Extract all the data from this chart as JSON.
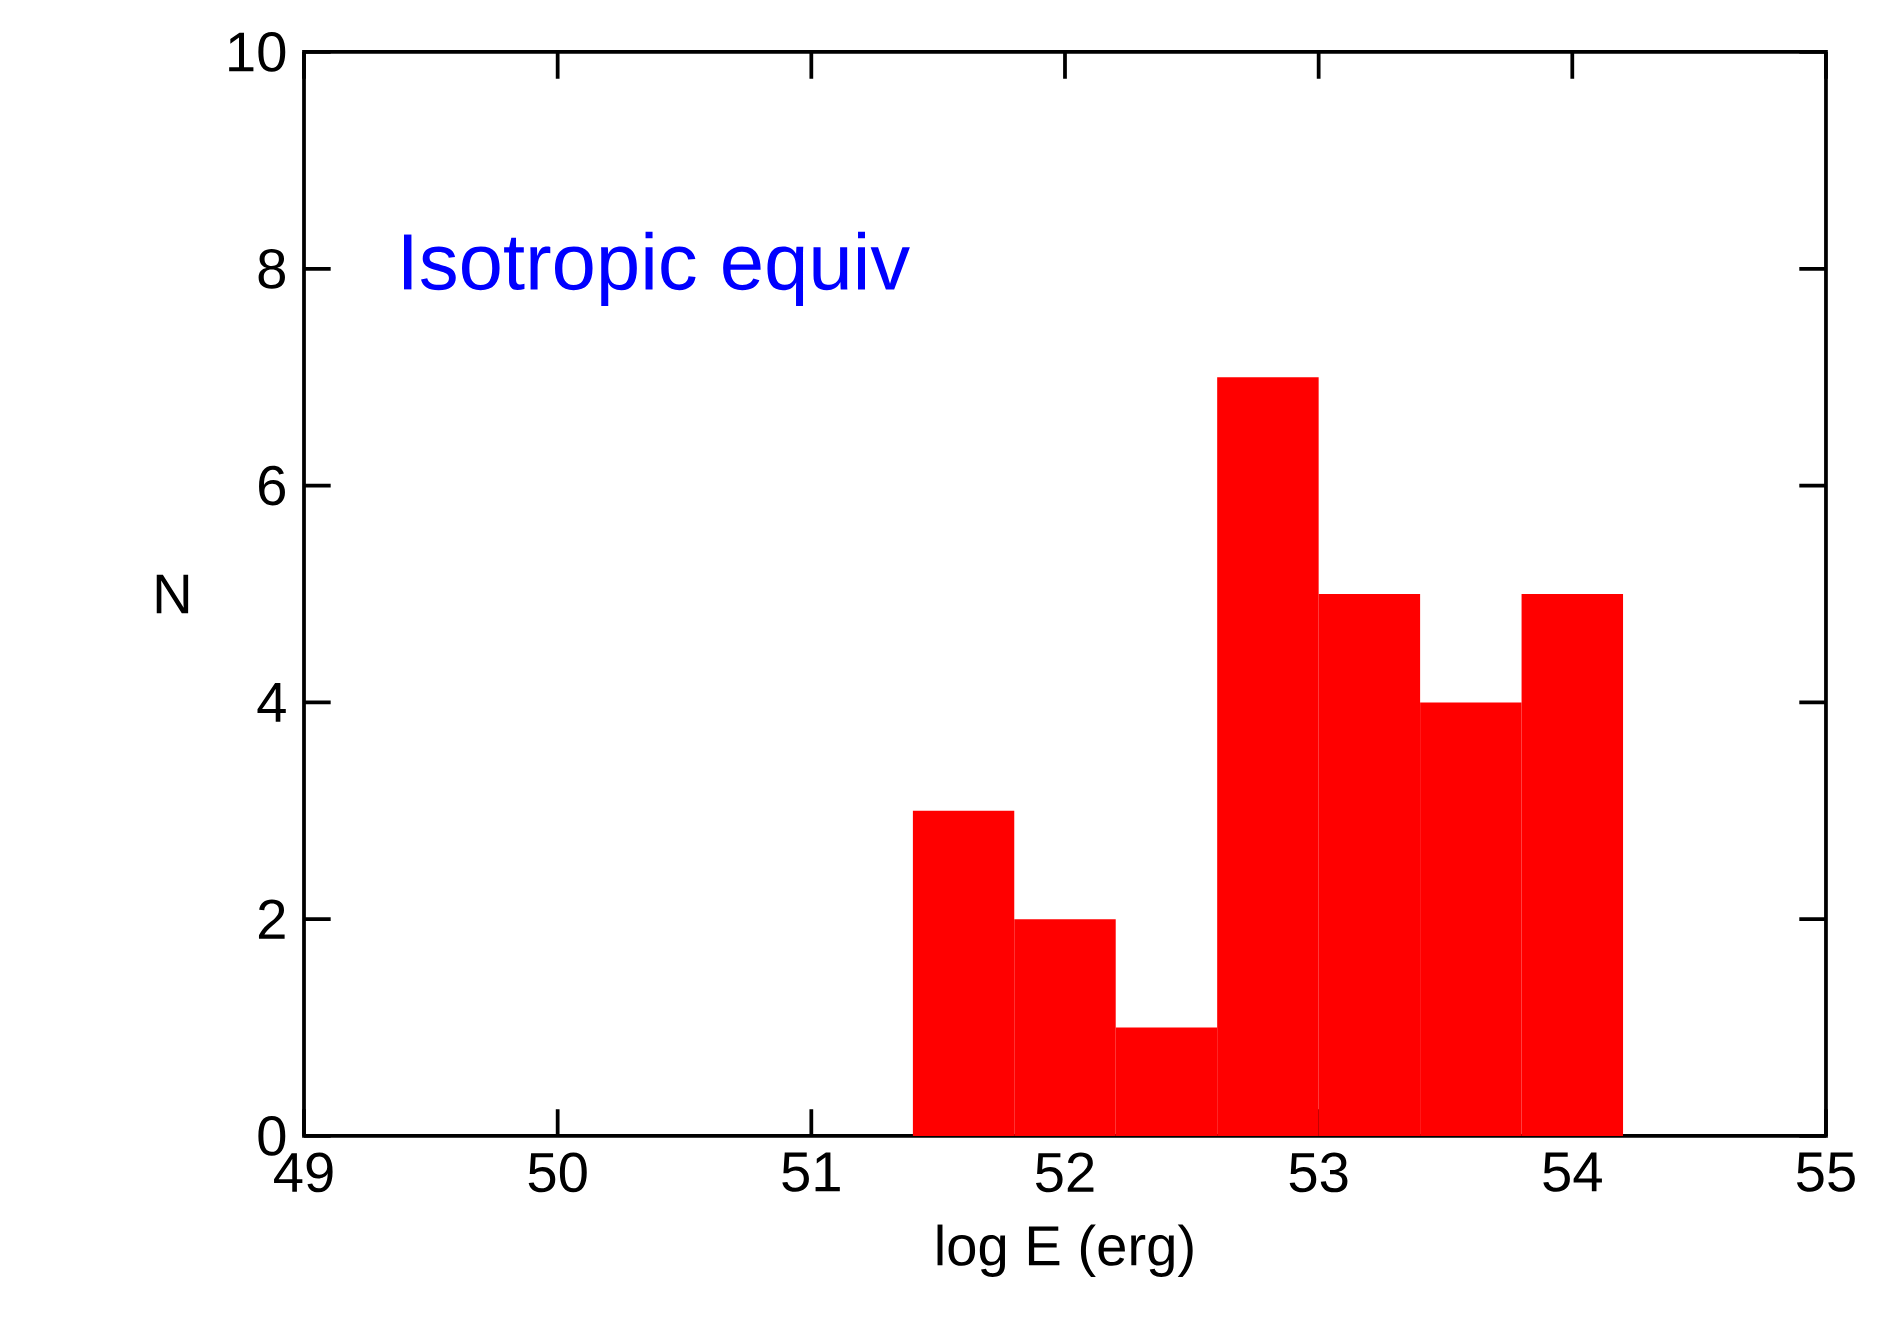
{
  "chart_data": {
    "type": "histogram",
    "xlabel": "log E (erg)",
    "ylabel": "N",
    "annotations": [
      "Isotropic equiv"
    ],
    "bins": [
      51.4,
      51.8,
      52.2,
      52.6,
      53.0,
      53.4,
      53.8,
      54.2
    ],
    "values": [
      3,
      2,
      1,
      7,
      5,
      4,
      5
    ],
    "color": "#ff0000",
    "xlim": [
      49,
      55
    ],
    "ylim": [
      0,
      10
    ],
    "xticks": [
      49,
      50,
      51,
      52,
      53,
      54,
      55
    ],
    "yticks": [
      0,
      2,
      4,
      6,
      8,
      10
    ],
    "grid": false
  }
}
